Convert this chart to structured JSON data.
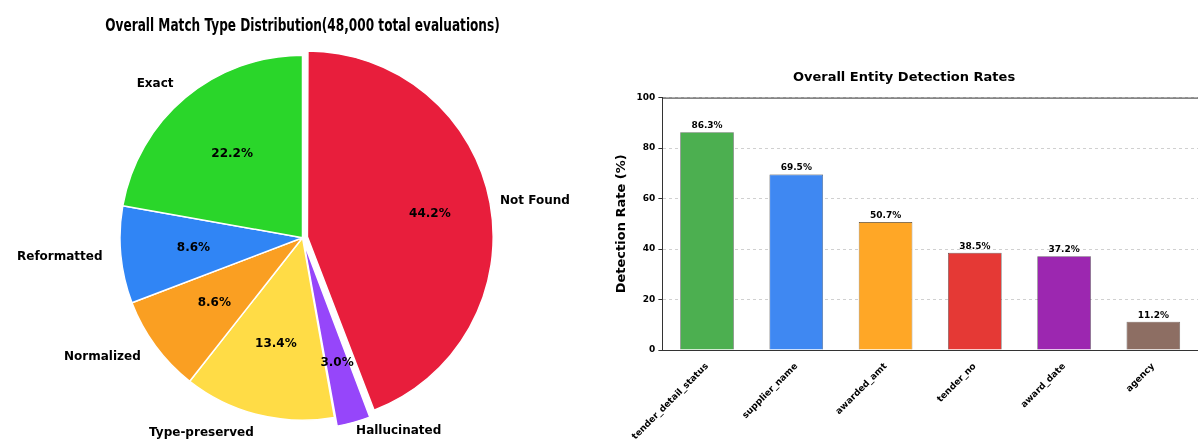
{
  "chart_data": [
    {
      "type": "pie",
      "title": "Overall Match Type Distribution(48,000 total evaluations)",
      "categories": [
        "Not Found",
        "Hallucinated",
        "Type-preserved",
        "Normalized",
        "Reformatted",
        "Exact"
      ],
      "values": [
        44.2,
        3.0,
        13.4,
        8.6,
        8.6,
        22.2
      ],
      "colors": [
        "#e81e3c",
        "#9646fa",
        "#ffdc46",
        "#fa9f22",
        "#3085f5",
        "#2ad62a"
      ],
      "value_labels": [
        "44.2%",
        "3.0%",
        "13.4%",
        "8.6%",
        "8.6%",
        "22.2%"
      ],
      "legend": false
    },
    {
      "type": "bar",
      "title": "Overall Entity Detection Rates",
      "ylabel": "Detection Rate (%)",
      "categories": [
        "tender_detail_status",
        "supplier_name",
        "awarded_amt",
        "tender_no",
        "award_date",
        "agency"
      ],
      "values": [
        86.3,
        69.5,
        50.7,
        38.5,
        37.2,
        11.2
      ],
      "colors": [
        "#4caf50",
        "#3f88f2",
        "#ffa726",
        "#e53935",
        "#9c27b0",
        "#8d6e63"
      ],
      "value_labels": [
        "86.3%",
        "69.5%",
        "50.7%",
        "38.5%",
        "37.2%",
        "11.2%"
      ],
      "ylim": [
        0,
        100
      ],
      "yticks": [
        0,
        20,
        40,
        60,
        80,
        100
      ],
      "grid": "y",
      "legend": false
    }
  ]
}
